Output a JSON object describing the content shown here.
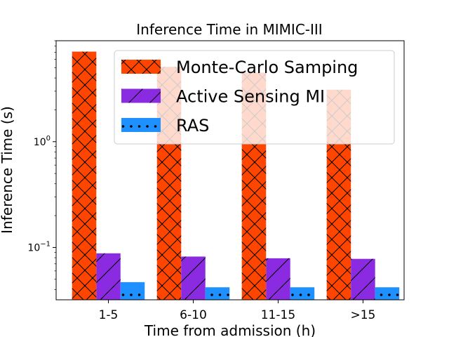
{
  "chart_data": {
    "type": "bar",
    "title": "Inference Time in MIMIC-III",
    "xlabel": "Time from admission (h)",
    "ylabel": "Inference Time (s)",
    "yscale": "log",
    "ylim": [
      0.032,
      9.0
    ],
    "categories": [
      "1-5",
      "6-10",
      "11-15",
      ">15"
    ],
    "series": [
      {
        "name": "Monte-Carlo Samping",
        "color": "#ff4500",
        "hatch": "crosshatch",
        "values": [
          7.1,
          5.1,
          4.5,
          3.1
        ]
      },
      {
        "name": "Active Sensing MI",
        "color": "#8a2be2",
        "hatch": "diagonal",
        "values": [
          0.088,
          0.082,
          0.079,
          0.078
        ]
      },
      {
        "name": "RAS",
        "color": "#1e90ff",
        "hatch": "dots",
        "values": [
          0.047,
          0.042,
          0.042,
          0.042
        ]
      }
    ],
    "yticks_major": [
      {
        "value": 1.0,
        "base": "10",
        "exp": "0"
      },
      {
        "value": 0.1,
        "base": "10",
        "exp": "−1"
      }
    ],
    "legend_position": "top-right",
    "grid": false
  }
}
